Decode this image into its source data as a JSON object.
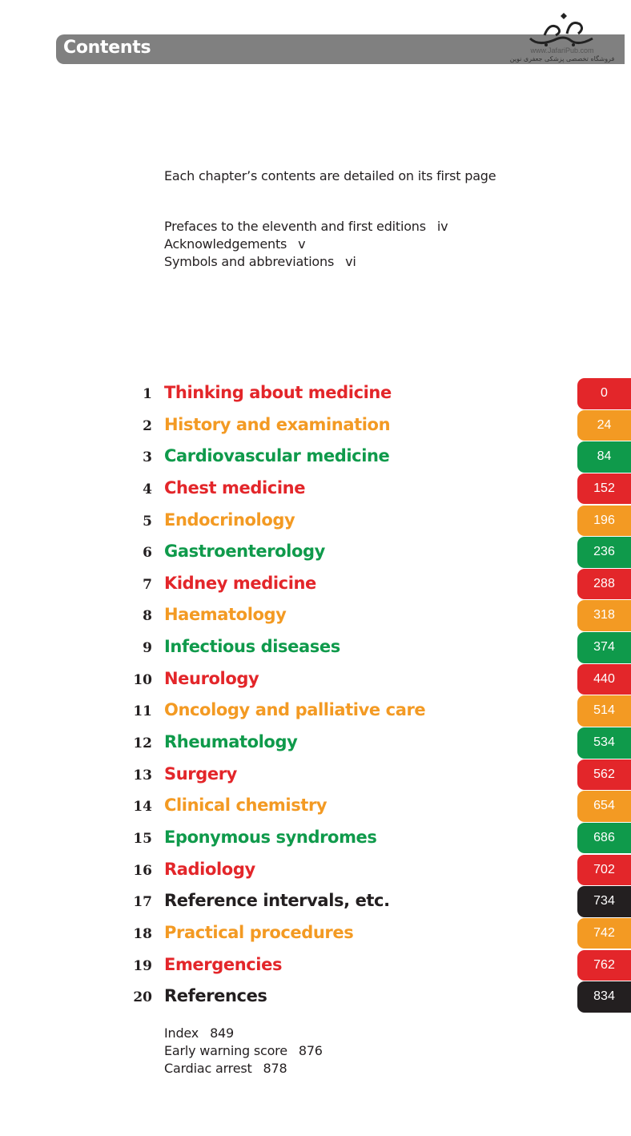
{
  "header": {
    "title": "Contents"
  },
  "watermark": {
    "url": "www.JafariPub.com",
    "tagline": "فروشگاه تخصصی پزشکی جعفری نوین"
  },
  "intro": "Each chapter’s contents are detailed on its first page",
  "prelims": [
    {
      "label": "Prefaces to the eleventh and first editions",
      "page": "iv"
    },
    {
      "label": "Acknowledgements",
      "page": "v"
    },
    {
      "label": "Symbols and abbreviations",
      "page": "vi"
    }
  ],
  "colors": {
    "red": "#e3262a",
    "orange": "#f39a23",
    "green": "#0f9a4b",
    "black": "#231f20"
  },
  "chapters": [
    {
      "num": "1",
      "title": "Thinking about medicine",
      "page": "0",
      "color": "#e3262a"
    },
    {
      "num": "2",
      "title": "History and examination",
      "page": "24",
      "color": "#f39a23"
    },
    {
      "num": "3",
      "title": "Cardiovascular medicine",
      "page": "84",
      "color": "#0f9a4b"
    },
    {
      "num": "4",
      "title": "Chest medicine",
      "page": "152",
      "color": "#e3262a"
    },
    {
      "num": "5",
      "title": "Endocrinology",
      "page": "196",
      "color": "#f39a23"
    },
    {
      "num": "6",
      "title": "Gastroenterology",
      "page": "236",
      "color": "#0f9a4b"
    },
    {
      "num": "7",
      "title": "Kidney medicine",
      "page": "288",
      "color": "#e3262a"
    },
    {
      "num": "8",
      "title": "Haematology",
      "page": "318",
      "color": "#f39a23"
    },
    {
      "num": "9",
      "title": "Infectious diseases",
      "page": "374",
      "color": "#0f9a4b"
    },
    {
      "num": "10",
      "title": "Neurology",
      "page": "440",
      "color": "#e3262a"
    },
    {
      "num": "11",
      "title": "Oncology and palliative care",
      "page": "514",
      "color": "#f39a23"
    },
    {
      "num": "12",
      "title": "Rheumatology",
      "page": "534",
      "color": "#0f9a4b"
    },
    {
      "num": "13",
      "title": "Surgery",
      "page": "562",
      "color": "#e3262a"
    },
    {
      "num": "14",
      "title": "Clinical chemistry",
      "page": "654",
      "color": "#f39a23"
    },
    {
      "num": "15",
      "title": "Eponymous syndromes",
      "page": "686",
      "color": "#0f9a4b"
    },
    {
      "num": "16",
      "title": "Radiology",
      "page": "702",
      "color": "#e3262a"
    },
    {
      "num": "17",
      "title": "Reference intervals, etc.",
      "page": "734",
      "color": "#231f20"
    },
    {
      "num": "18",
      "title": "Practical procedures",
      "page": "742",
      "color": "#f39a23"
    },
    {
      "num": "19",
      "title": "Emergencies",
      "page": "762",
      "color": "#e3262a"
    },
    {
      "num": "20",
      "title": "References",
      "page": "834",
      "color": "#231f20"
    }
  ],
  "endmatter": [
    {
      "label": "Index",
      "page": "849"
    },
    {
      "label": "Early warning score",
      "page": "876"
    },
    {
      "label": "Cardiac arrest",
      "page": "878"
    }
  ]
}
